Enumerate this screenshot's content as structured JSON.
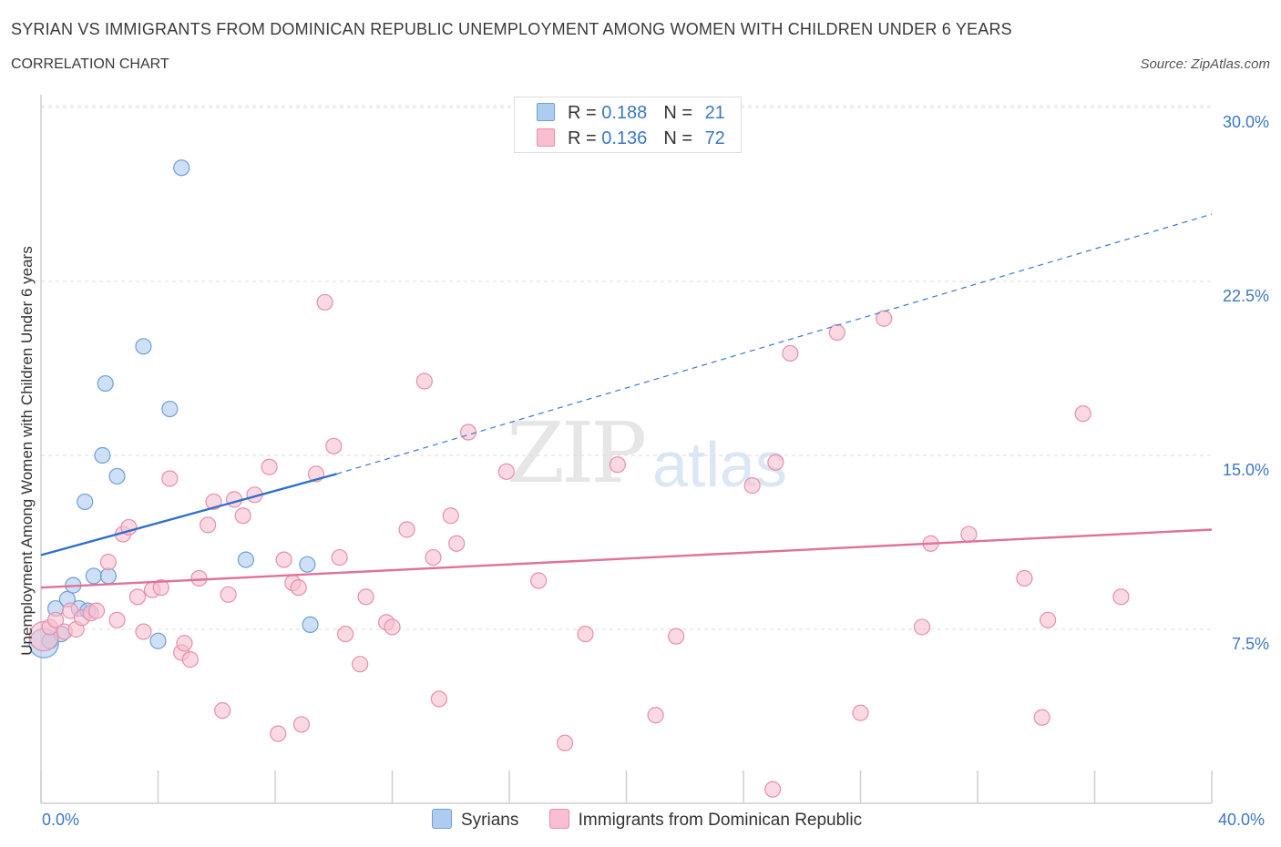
{
  "header": {
    "title": "SYRIAN VS IMMIGRANTS FROM DOMINICAN REPUBLIC UNEMPLOYMENT AMONG WOMEN WITH CHILDREN UNDER 6 YEARS",
    "subtitle": "CORRELATION CHART",
    "source": "Source: ZipAtlas.com"
  },
  "watermark": {
    "zip": "ZIP",
    "atlas": "atlas"
  },
  "legend": {
    "rows": [
      {
        "r_label": "R = ",
        "r_value": "0.188",
        "n_label": "N = ",
        "n_value": "21",
        "color": "#aecbf0",
        "stroke": "#6f9fd8"
      },
      {
        "r_label": "R = ",
        "r_value": "0.136",
        "n_label": "N = ",
        "n_value": "72",
        "color": "#f7bfd0",
        "stroke": "#e88fab"
      }
    ]
  },
  "bottom_legend": {
    "items": [
      {
        "label": "Syrians",
        "color": "#aecbf0",
        "stroke": "#6f9fd8"
      },
      {
        "label": "Immigrants from Dominican Republic",
        "color": "#f7bfd0",
        "stroke": "#e88fab"
      }
    ]
  },
  "chart_data": {
    "type": "scatter",
    "title": "SYRIAN VS IMMIGRANTS FROM DOMINICAN REPUBLIC UNEMPLOYMENT AMONG WOMEN WITH CHILDREN UNDER 6 YEARS",
    "subtitle": "CORRELATION CHART",
    "xlabel": "",
    "ylabel": "Unemployment Among Women with Children Under 6 years",
    "xlim": [
      0,
      40
    ],
    "ylim": [
      0,
      30
    ],
    "x_tick_labels": [
      "0.0%",
      "40.0%"
    ],
    "y_ticks": [
      7.5,
      15.0,
      22.5,
      30.0
    ],
    "y_tick_labels": [
      "7.5%",
      "15.0%",
      "22.5%",
      "30.0%"
    ],
    "grid": "horizontal dashed",
    "legend_position": "top-center",
    "series": [
      {
        "name": "Syrians",
        "color": "#6f9fd8",
        "fill": "#aecbf0",
        "trend": {
          "x": [
            0,
            10.1
          ],
          "y": [
            10.7,
            14.2
          ],
          "extended_to": [
            40,
            25.4
          ]
        },
        "points": [
          {
            "x": 0.1,
            "y": 6.9,
            "big": true
          },
          {
            "x": 0.3,
            "y": 7.0
          },
          {
            "x": 0.5,
            "y": 8.4
          },
          {
            "x": 0.7,
            "y": 7.3
          },
          {
            "x": 0.9,
            "y": 8.8
          },
          {
            "x": 1.1,
            "y": 9.4
          },
          {
            "x": 1.3,
            "y": 8.4
          },
          {
            "x": 1.6,
            "y": 8.3
          },
          {
            "x": 1.8,
            "y": 9.8
          },
          {
            "x": 2.3,
            "y": 9.8
          },
          {
            "x": 1.5,
            "y": 13.0
          },
          {
            "x": 2.1,
            "y": 15.0
          },
          {
            "x": 2.6,
            "y": 14.1
          },
          {
            "x": 2.2,
            "y": 18.1
          },
          {
            "x": 3.5,
            "y": 19.7
          },
          {
            "x": 4.4,
            "y": 17.0
          },
          {
            "x": 4.0,
            "y": 7.0
          },
          {
            "x": 4.8,
            "y": 27.4
          },
          {
            "x": 7.0,
            "y": 10.5
          },
          {
            "x": 9.1,
            "y": 10.3
          },
          {
            "x": 9.2,
            "y": 7.7
          }
        ]
      },
      {
        "name": "Immigrants from Dominican Republic",
        "color": "#e88fab",
        "fill": "#f7bfd0",
        "trend": {
          "x": [
            0,
            40
          ],
          "y": [
            9.3,
            11.8
          ]
        },
        "points": [
          {
            "x": 0.1,
            "y": 7.2,
            "big": true
          },
          {
            "x": 0.3,
            "y": 7.6
          },
          {
            "x": 0.5,
            "y": 7.9
          },
          {
            "x": 0.8,
            "y": 7.4
          },
          {
            "x": 1.0,
            "y": 8.3
          },
          {
            "x": 1.2,
            "y": 7.5
          },
          {
            "x": 1.4,
            "y": 8.0
          },
          {
            "x": 1.7,
            "y": 8.2
          },
          {
            "x": 1.9,
            "y": 8.3
          },
          {
            "x": 2.3,
            "y": 10.4
          },
          {
            "x": 2.6,
            "y": 7.9
          },
          {
            "x": 2.8,
            "y": 11.6
          },
          {
            "x": 3.0,
            "y": 11.9
          },
          {
            "x": 3.3,
            "y": 8.9
          },
          {
            "x": 3.5,
            "y": 7.4
          },
          {
            "x": 3.8,
            "y": 9.2
          },
          {
            "x": 4.1,
            "y": 9.3
          },
          {
            "x": 4.4,
            "y": 14.0
          },
          {
            "x": 4.8,
            "y": 6.5
          },
          {
            "x": 4.9,
            "y": 6.9
          },
          {
            "x": 5.1,
            "y": 6.2
          },
          {
            "x": 5.4,
            "y": 9.7
          },
          {
            "x": 5.7,
            "y": 12.0
          },
          {
            "x": 5.9,
            "y": 13.0
          },
          {
            "x": 6.2,
            "y": 4.0
          },
          {
            "x": 6.4,
            "y": 9.0
          },
          {
            "x": 6.6,
            "y": 13.1
          },
          {
            "x": 6.9,
            "y": 12.4
          },
          {
            "x": 7.3,
            "y": 13.3
          },
          {
            "x": 7.8,
            "y": 14.5
          },
          {
            "x": 8.1,
            "y": 3.0
          },
          {
            "x": 8.3,
            "y": 10.5
          },
          {
            "x": 8.6,
            "y": 9.5
          },
          {
            "x": 8.8,
            "y": 9.3
          },
          {
            "x": 8.9,
            "y": 3.4
          },
          {
            "x": 9.4,
            "y": 14.2
          },
          {
            "x": 9.7,
            "y": 21.6
          },
          {
            "x": 10.0,
            "y": 15.4
          },
          {
            "x": 10.2,
            "y": 10.6
          },
          {
            "x": 10.4,
            "y": 7.3
          },
          {
            "x": 10.9,
            "y": 6.0
          },
          {
            "x": 11.1,
            "y": 8.9
          },
          {
            "x": 11.8,
            "y": 7.8
          },
          {
            "x": 12.0,
            "y": 7.6
          },
          {
            "x": 12.5,
            "y": 11.8
          },
          {
            "x": 13.1,
            "y": 18.2
          },
          {
            "x": 13.4,
            "y": 10.6
          },
          {
            "x": 13.6,
            "y": 4.5
          },
          {
            "x": 14.0,
            "y": 12.4
          },
          {
            "x": 14.2,
            "y": 11.2
          },
          {
            "x": 14.6,
            "y": 16.0
          },
          {
            "x": 15.9,
            "y": 14.3
          },
          {
            "x": 17.0,
            "y": 9.6
          },
          {
            "x": 17.9,
            "y": 2.6
          },
          {
            "x": 18.6,
            "y": 7.3
          },
          {
            "x": 19.7,
            "y": 14.6
          },
          {
            "x": 21.0,
            "y": 3.8
          },
          {
            "x": 21.7,
            "y": 7.2
          },
          {
            "x": 24.3,
            "y": 13.7
          },
          {
            "x": 25.0,
            "y": 0.6
          },
          {
            "x": 25.1,
            "y": 14.7
          },
          {
            "x": 25.6,
            "y": 19.4
          },
          {
            "x": 27.2,
            "y": 20.3
          },
          {
            "x": 28.0,
            "y": 3.9
          },
          {
            "x": 28.8,
            "y": 20.9
          },
          {
            "x": 30.1,
            "y": 7.6
          },
          {
            "x": 30.4,
            "y": 11.2
          },
          {
            "x": 31.7,
            "y": 11.6
          },
          {
            "x": 33.6,
            "y": 9.7
          },
          {
            "x": 34.2,
            "y": 3.7
          },
          {
            "x": 34.4,
            "y": 7.9
          },
          {
            "x": 35.6,
            "y": 16.8
          },
          {
            "x": 36.9,
            "y": 8.9
          }
        ]
      }
    ]
  }
}
